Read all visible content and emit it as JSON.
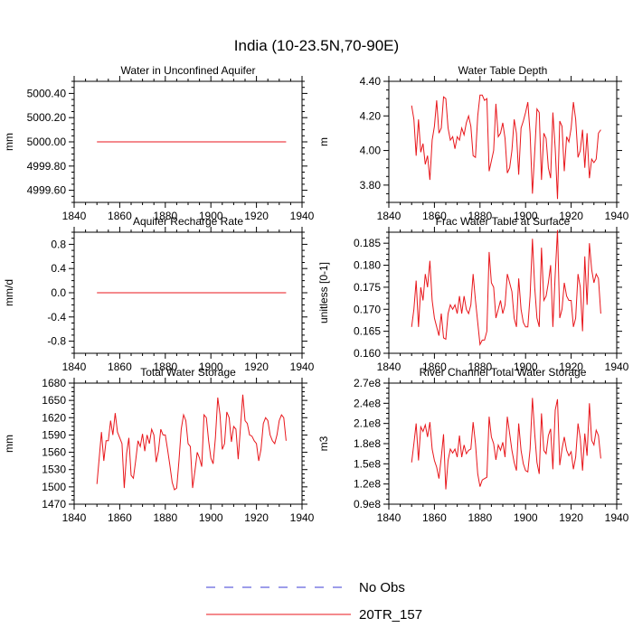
{
  "title": "India (10-23.5N,70-90E)",
  "colors": {
    "model_line": "#e8161b",
    "obs_line": "#3b3bd6",
    "axis": "#000000"
  },
  "legend": [
    {
      "label": "No Obs",
      "style": "dashed",
      "color": "#3b3bd6"
    },
    {
      "label": "20TR_157",
      "style": "solid",
      "color": "#e8161b"
    }
  ],
  "chart_data": [
    {
      "type": "line",
      "title": "Water in Unconfined Aquifer",
      "ylabel": "mm",
      "xlim": [
        1840,
        1940
      ],
      "xticks": [
        1840,
        1860,
        1880,
        1900,
        1920,
        1940
      ],
      "ylim": [
        4999.5,
        5000.5
      ],
      "yticks": [
        4999.6,
        4999.8,
        5000.0,
        5000.2,
        5000.4
      ],
      "ytick_labels": [
        "4999.60",
        "4999.80",
        "5000.00",
        "5000.20",
        "5000.40"
      ],
      "series": [
        {
          "name": "20TR_157",
          "x_start": 1850,
          "values": [
            5000,
            5000,
            5000,
            5000,
            5000,
            5000,
            5000,
            5000,
            5000,
            5000,
            5000,
            5000,
            5000,
            5000,
            5000,
            5000,
            5000,
            5000,
            5000,
            5000,
            5000,
            5000,
            5000,
            5000,
            5000,
            5000,
            5000,
            5000,
            5000,
            5000,
            5000,
            5000,
            5000,
            5000,
            5000,
            5000,
            5000,
            5000,
            5000,
            5000,
            5000,
            5000,
            5000,
            5000,
            5000,
            5000,
            5000,
            5000,
            5000,
            5000,
            5000,
            5000,
            5000,
            5000,
            5000,
            5000,
            5000,
            5000,
            5000,
            5000,
            5000,
            5000,
            5000,
            5000,
            5000,
            5000,
            5000,
            5000,
            5000,
            5000,
            5000,
            5000,
            5000,
            5000,
            5000,
            5000,
            5000,
            5000,
            5000,
            5000,
            5000,
            5000,
            5000,
            5000
          ]
        }
      ]
    },
    {
      "type": "line",
      "title": "Water Table Depth",
      "ylabel": "m",
      "xlim": [
        1840,
        1940
      ],
      "xticks": [
        1840,
        1860,
        1880,
        1900,
        1920,
        1940
      ],
      "ylim": [
        3.7,
        4.4
      ],
      "yticks": [
        3.8,
        4.0,
        4.2,
        4.4
      ],
      "ytick_labels": [
        "3.80",
        "4.00",
        "4.20",
        "4.40"
      ],
      "series": [
        {
          "name": "20TR_157",
          "x_start": 1850,
          "values": [
            4.26,
            4.18,
            3.97,
            4.18,
            3.99,
            4.04,
            3.92,
            3.97,
            3.83,
            4.06,
            4.14,
            4.29,
            4.1,
            4.13,
            4.31,
            4.3,
            4.13,
            4.06,
            4.08,
            4.01,
            4.08,
            4.06,
            4.13,
            4.09,
            4.16,
            4.2,
            4.14,
            3.97,
            3.96,
            4.2,
            4.32,
            4.32,
            4.29,
            4.3,
            3.88,
            3.94,
            4.0,
            4.27,
            4.08,
            4.1,
            4.16,
            4.07,
            3.87,
            3.9,
            4.0,
            4.18,
            4.1,
            3.86,
            4.13,
            4.17,
            4.22,
            4.28,
            4.1,
            3.75,
            3.99,
            4.24,
            4.22,
            3.83,
            4.1,
            4.07,
            3.9,
            3.84,
            4.22,
            4.01,
            3.72,
            4.17,
            4.14,
            3.88,
            4.08,
            4.05,
            4.13,
            4.28,
            4.18,
            3.96,
            4.0,
            4.12,
            3.9,
            4.1,
            3.84,
            3.95,
            3.93,
            3.95,
            4.1,
            4.12
          ]
        }
      ]
    },
    {
      "type": "line",
      "title": "Aquifer Recharge Rate",
      "ylabel": "mm/d",
      "xlim": [
        1840,
        1940
      ],
      "xticks": [
        1840,
        1860,
        1880,
        1900,
        1920,
        1940
      ],
      "ylim": [
        -1.0,
        1.0
      ],
      "yticks": [
        -0.8,
        -0.4,
        0.0,
        0.4,
        0.8
      ],
      "ytick_labels": [
        "-0.8",
        "-0.4",
        "0.0",
        "0.4",
        "0.8"
      ],
      "series": [
        {
          "name": "20TR_157",
          "x_start": 1850,
          "values": [
            0,
            0,
            0,
            0,
            0,
            0,
            0,
            0,
            0,
            0,
            0,
            0,
            0,
            0,
            0,
            0,
            0,
            0,
            0,
            0,
            0,
            0,
            0,
            0,
            0,
            0,
            0,
            0,
            0,
            0,
            0,
            0,
            0,
            0,
            0,
            0,
            0,
            0,
            0,
            0,
            0,
            0,
            0,
            0,
            0,
            0,
            0,
            0,
            0,
            0,
            0,
            0,
            0,
            0,
            0,
            0,
            0,
            0,
            0,
            0,
            0,
            0,
            0,
            0,
            0,
            0,
            0,
            0,
            0,
            0,
            0,
            0,
            0,
            0,
            0,
            0,
            0,
            0,
            0,
            0,
            0,
            0,
            0,
            0
          ]
        }
      ]
    },
    {
      "type": "line",
      "title": "Frac Water Table at Surface",
      "ylabel": "unitless [0-1]",
      "xlim": [
        1840,
        1940
      ],
      "xticks": [
        1840,
        1860,
        1880,
        1900,
        1920,
        1940
      ],
      "ylim": [
        0.16,
        0.1875
      ],
      "yticks": [
        0.16,
        0.165,
        0.17,
        0.175,
        0.18,
        0.185
      ],
      "ytick_labels": [
        "0.160",
        "0.165",
        "0.170",
        "0.175",
        "0.180",
        "0.185"
      ],
      "series": [
        {
          "name": "20TR_157",
          "x_start": 1850,
          "values": [
            0.166,
            0.17,
            0.1765,
            0.166,
            0.175,
            0.172,
            0.178,
            0.175,
            0.181,
            0.172,
            0.168,
            0.166,
            0.164,
            0.169,
            0.1635,
            0.1632,
            0.169,
            0.171,
            0.17,
            0.171,
            0.169,
            0.173,
            0.169,
            0.173,
            0.17,
            0.169,
            0.171,
            0.178,
            0.172,
            0.167,
            0.162,
            0.163,
            0.163,
            0.165,
            0.183,
            0.176,
            0.175,
            0.168,
            0.17,
            0.172,
            0.169,
            0.171,
            0.178,
            0.176,
            0.174,
            0.168,
            0.166,
            0.177,
            0.17,
            0.167,
            0.166,
            0.166,
            0.173,
            0.186,
            0.175,
            0.168,
            0.166,
            0.184,
            0.172,
            0.173,
            0.176,
            0.18,
            0.166,
            0.178,
            0.188,
            0.168,
            0.17,
            0.176,
            0.173,
            0.172,
            0.172,
            0.166,
            0.168,
            0.178,
            0.175,
            0.165,
            0.182,
            0.171,
            0.185,
            0.179,
            0.176,
            0.178,
            0.177,
            0.169
          ]
        }
      ]
    },
    {
      "type": "line",
      "title": "Total Water Storage",
      "ylabel": "mm",
      "xlim": [
        1840,
        1940
      ],
      "xticks": [
        1840,
        1860,
        1880,
        1900,
        1920,
        1940
      ],
      "ylim": [
        1470,
        1680
      ],
      "yticks": [
        1470,
        1500,
        1530,
        1560,
        1590,
        1620,
        1650,
        1680
      ],
      "ytick_labels": [
        "1470",
        "1500",
        "1530",
        "1560",
        "1590",
        "1620",
        "1650",
        "1680"
      ],
      "series": [
        {
          "name": "20TR_157",
          "x_start": 1850,
          "values": [
            1505,
            1550,
            1595,
            1545,
            1580,
            1580,
            1615,
            1590,
            1628,
            1595,
            1585,
            1575,
            1498,
            1558,
            1585,
            1520,
            1515,
            1545,
            1580,
            1570,
            1592,
            1562,
            1590,
            1575,
            1600,
            1590,
            1543,
            1562,
            1600,
            1590,
            1590,
            1565,
            1538,
            1508,
            1495,
            1498,
            1545,
            1600,
            1625,
            1615,
            1575,
            1570,
            1498,
            1528,
            1560,
            1550,
            1535,
            1625,
            1620,
            1580,
            1550,
            1540,
            1585,
            1655,
            1625,
            1565,
            1575,
            1630,
            1620,
            1578,
            1605,
            1600,
            1548,
            1605,
            1660,
            1615,
            1610,
            1590,
            1588,
            1580,
            1575,
            1545,
            1565,
            1610,
            1620,
            1615,
            1590,
            1580,
            1575,
            1590,
            1615,
            1625,
            1620,
            1580
          ]
        }
      ]
    },
    {
      "type": "line",
      "title": "River Channel Total Water Storage",
      "ylabel": "m3",
      "xlim": [
        1840,
        1940
      ],
      "xticks": [
        1840,
        1860,
        1880,
        1900,
        1920,
        1940
      ],
      "ylim": [
        0.9,
        2.7
      ],
      "yticks": [
        0.9,
        1.2,
        1.5,
        1.8,
        2.1,
        2.4,
        2.7
      ],
      "ytick_labels": [
        "0.9e8",
        "1.2e8",
        "1.5e8",
        "1.8e8",
        "2.1e8",
        "2.4e8",
        "2.7e8"
      ],
      "series": [
        {
          "name": "20TR_157",
          "x_start": 1850,
          "values": [
            1.52,
            1.8,
            2.1,
            1.55,
            2.05,
            1.98,
            2.08,
            1.9,
            2.12,
            1.72,
            1.55,
            1.45,
            1.28,
            1.6,
            1.94,
            1.12,
            1.55,
            1.72,
            1.66,
            1.72,
            1.6,
            1.92,
            1.6,
            1.78,
            1.65,
            1.7,
            1.72,
            2.12,
            1.8,
            1.35,
            1.16,
            1.26,
            1.28,
            1.3,
            2.2,
            1.9,
            1.8,
            1.56,
            1.78,
            1.7,
            1.82,
            1.6,
            2.2,
            1.95,
            1.7,
            1.52,
            1.4,
            2.1,
            1.7,
            1.5,
            1.4,
            1.38,
            1.72,
            2.48,
            1.95,
            1.52,
            1.35,
            2.25,
            1.7,
            1.65,
            1.92,
            2.02,
            1.42,
            2.3,
            2.46,
            1.48,
            1.72,
            1.9,
            1.7,
            1.62,
            1.68,
            1.42,
            1.6,
            2.1,
            1.88,
            1.4,
            1.95,
            1.62,
            2.4,
            1.85,
            1.78,
            2.0,
            1.92,
            1.58
          ]
        }
      ]
    }
  ]
}
